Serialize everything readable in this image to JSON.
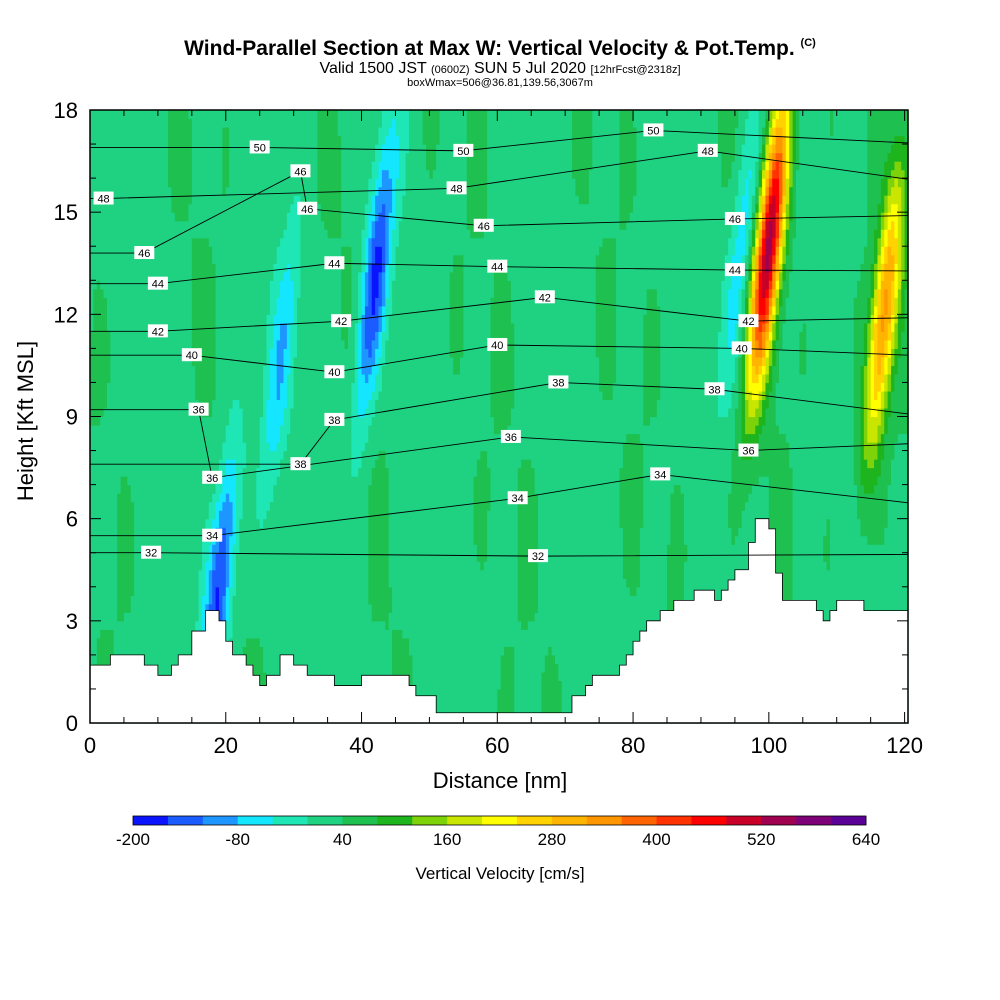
{
  "title": {
    "main": "Wind-Parallel Section at Max W: Vertical Velocity & Pot.Temp.",
    "main_mark": "(C)",
    "line2_a": "Valid 1500 JST",
    "line2_b": "(0600Z)",
    "line2_c": "SUN 5 Jul 2020",
    "line2_d": "[12hrFcst@2318z]",
    "line3": "boxWmax=506@36.81,139.56,3067m"
  },
  "chart_data": {
    "type": "heatmap",
    "xlabel": "Distance [nm]",
    "ylabel": "Height [Kft MSL]",
    "xlim": [
      0,
      120.5
    ],
    "ylim": [
      0,
      18
    ],
    "x_ticks": [
      0,
      20,
      40,
      60,
      80,
      100,
      120
    ],
    "y_ticks": [
      0,
      3,
      6,
      9,
      12,
      15,
      18
    ],
    "colorbar": {
      "label": "Vertical Velocity [cm/s]",
      "min": -200,
      "max": 640,
      "step": 40,
      "tick_labels": [
        -200,
        -80,
        40,
        160,
        280,
        400,
        520,
        640
      ],
      "colors": [
        "#0a14ff",
        "#1a5cff",
        "#1e96ff",
        "#14e6ff",
        "#1ee6b4",
        "#1ed282",
        "#1ec050",
        "#1eb41e",
        "#7ed20a",
        "#c8e600",
        "#ffff00",
        "#ffd200",
        "#ffb400",
        "#ff9600",
        "#ff6400",
        "#ff3200",
        "#ff0000",
        "#c80028",
        "#a00050",
        "#7e0078",
        "#5a0096"
      ]
    },
    "updrafts": [
      {
        "x": 100,
        "center_height": 14,
        "w_max": 506
      },
      {
        "x": 117,
        "center_height": 12,
        "w_max": 300
      }
    ],
    "downdrafts": [
      {
        "x": 19,
        "center_height": 4,
        "w_min": -200
      },
      {
        "x": 28,
        "center_height": 10.5,
        "w_min": -100
      },
      {
        "x": 42,
        "center_height": 13,
        "w_min": -200
      },
      {
        "x": 96,
        "center_height": 14,
        "w_min": -100
      }
    ],
    "terrain": [
      [
        0,
        1.7
      ],
      [
        3,
        1.7
      ],
      [
        3,
        2
      ],
      [
        8,
        2
      ],
      [
        8,
        1.7
      ],
      [
        10,
        1.7
      ],
      [
        10,
        1.4
      ],
      [
        12,
        1.4
      ],
      [
        12,
        1.7
      ],
      [
        13,
        1.7
      ],
      [
        13,
        2
      ],
      [
        15,
        2
      ],
      [
        15,
        2.7
      ],
      [
        17,
        2.7
      ],
      [
        17,
        3.3
      ],
      [
        19,
        3.3
      ],
      [
        19,
        3
      ],
      [
        20,
        3
      ],
      [
        20,
        2.4
      ],
      [
        21,
        2.4
      ],
      [
        21,
        2
      ],
      [
        23,
        2
      ],
      [
        23,
        1.7
      ],
      [
        24,
        1.7
      ],
      [
        24,
        1.4
      ],
      [
        25,
        1.4
      ],
      [
        25,
        1.1
      ],
      [
        26,
        1.1
      ],
      [
        26,
        1.4
      ],
      [
        28,
        1.4
      ],
      [
        28,
        2
      ],
      [
        30,
        2
      ],
      [
        30,
        1.7
      ],
      [
        32,
        1.7
      ],
      [
        32,
        1.4
      ],
      [
        36,
        1.4
      ],
      [
        36,
        1.1
      ],
      [
        40,
        1.1
      ],
      [
        40,
        1.4
      ],
      [
        47,
        1.4
      ],
      [
        47,
        1.1
      ],
      [
        48,
        1.1
      ],
      [
        48,
        0.8
      ],
      [
        51,
        0.8
      ],
      [
        51,
        0.3
      ],
      [
        71,
        0.3
      ],
      [
        71,
        0.8
      ],
      [
        73,
        0.8
      ],
      [
        73,
        1.1
      ],
      [
        74,
        1.1
      ],
      [
        74,
        1.4
      ],
      [
        78,
        1.4
      ],
      [
        78,
        1.7
      ],
      [
        79,
        1.7
      ],
      [
        79,
        2
      ],
      [
        80,
        2
      ],
      [
        80,
        2.4
      ],
      [
        81,
        2.4
      ],
      [
        81,
        2.7
      ],
      [
        82,
        2.7
      ],
      [
        82,
        3
      ],
      [
        84,
        3
      ],
      [
        84,
        3.3
      ],
      [
        86,
        3.3
      ],
      [
        86,
        3.6
      ],
      [
        89,
        3.6
      ],
      [
        89,
        3.9
      ],
      [
        92,
        3.9
      ],
      [
        92,
        3.6
      ],
      [
        93,
        3.6
      ],
      [
        93,
        3.9
      ],
      [
        94,
        3.9
      ],
      [
        94,
        4.2
      ],
      [
        95,
        4.2
      ],
      [
        95,
        4.5
      ],
      [
        97,
        4.5
      ],
      [
        97,
        5.3
      ],
      [
        98,
        5.3
      ],
      [
        98,
        6
      ],
      [
        100,
        6
      ],
      [
        100,
        5.7
      ],
      [
        101,
        5.7
      ],
      [
        101,
        4.4
      ],
      [
        102,
        4.4
      ],
      [
        102,
        3.6
      ],
      [
        107,
        3.6
      ],
      [
        107,
        3.3
      ],
      [
        108,
        3.3
      ],
      [
        108,
        3
      ],
      [
        109,
        3
      ],
      [
        109,
        3.3
      ],
      [
        110,
        3.3
      ],
      [
        110,
        3.6
      ],
      [
        114,
        3.6
      ],
      [
        114,
        3.3
      ],
      [
        120.5,
        3.3
      ],
      [
        120.5,
        0
      ],
      [
        0,
        0
      ]
    ],
    "isentropes": [
      {
        "label": "32",
        "label_x": 9,
        "label_y": 5
      },
      {
        "label": "34",
        "label_x": 18,
        "label_y": 5.5
      },
      {
        "label": "36",
        "label_x": 18,
        "label_y": 7.2
      },
      {
        "label": "36",
        "label_x": 16,
        "label_y": 9.2
      },
      {
        "label": "38",
        "label_x": 31,
        "label_y": 7.6
      },
      {
        "label": "38",
        "label_x": 36,
        "label_y": 8.9
      },
      {
        "label": "40",
        "label_x": 15,
        "label_y": 10.8
      },
      {
        "label": "40",
        "label_x": 36,
        "label_y": 10.3
      },
      {
        "label": "42",
        "label_x": 10,
        "label_y": 11.5
      },
      {
        "label": "42",
        "label_x": 37,
        "label_y": 11.8
      },
      {
        "label": "44",
        "label_x": 10,
        "label_y": 12.9
      },
      {
        "label": "44",
        "label_x": 36,
        "label_y": 13.5
      },
      {
        "label": "46",
        "label_x": 8,
        "label_y": 13.8
      },
      {
        "label": "46",
        "label_x": 32,
        "label_y": 15.1
      },
      {
        "label": "46",
        "label_x": 31,
        "label_y": 16.2
      },
      {
        "label": "48",
        "label_x": 2,
        "label_y": 15.4
      },
      {
        "label": "50",
        "label_x": 25,
        "label_y": 16.9
      },
      {
        "label": "50",
        "label_x": 55,
        "label_y": 16.8
      },
      {
        "label": "48",
        "label_x": 54,
        "label_y": 15.7
      },
      {
        "label": "46",
        "label_x": 58,
        "label_y": 14.6
      },
      {
        "label": "44",
        "label_x": 60,
        "label_y": 13.4
      },
      {
        "label": "42",
        "label_x": 67,
        "label_y": 12.5
      },
      {
        "label": "40",
        "label_x": 60,
        "label_y": 11.1
      },
      {
        "label": "38",
        "label_x": 69,
        "label_y": 10
      },
      {
        "label": "36",
        "label_x": 62,
        "label_y": 8.4
      },
      {
        "label": "34",
        "label_x": 63,
        "label_y": 6.6
      },
      {
        "label": "32",
        "label_x": 66,
        "label_y": 4.9
      },
      {
        "label": "34",
        "label_x": 84,
        "label_y": 7.3
      },
      {
        "label": "36",
        "label_x": 97,
        "label_y": 8
      },
      {
        "label": "38",
        "label_x": 92,
        "label_y": 9.8
      },
      {
        "label": "40",
        "label_x": 96,
        "label_y": 11
      },
      {
        "label": "42",
        "label_x": 97,
        "label_y": 11.8
      },
      {
        "label": "44",
        "label_x": 95,
        "label_y": 13.3
      },
      {
        "label": "46",
        "label_x": 95,
        "label_y": 14.8
      },
      {
        "label": "48",
        "label_x": 91,
        "label_y": 16.8
      },
      {
        "label": "50",
        "label_x": 83,
        "label_y": 17.4
      }
    ]
  }
}
